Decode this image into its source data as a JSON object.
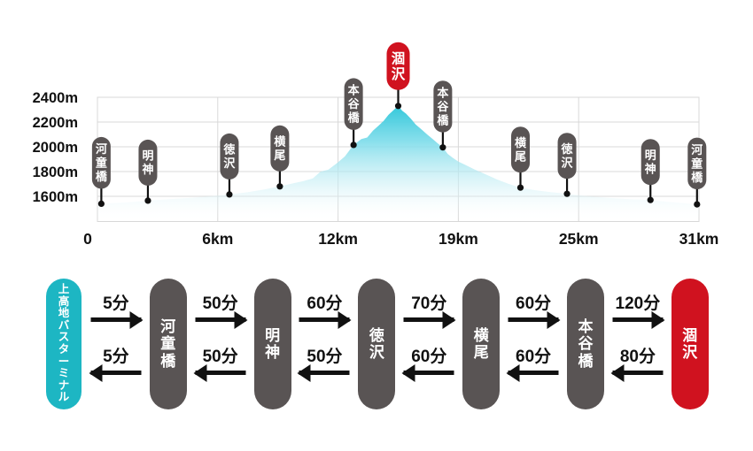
{
  "colors": {
    "teal": "#1db6c3",
    "red": "#d0121f",
    "dark_gray": "#595454",
    "grid_gray": "#d8d8d8",
    "text_black": "#111111",
    "area_cyan_top": "#1ec2d6",
    "area_cyan_mid": "#7ddcea",
    "area_cyan_low": "#c9eff5"
  },
  "chart_data": {
    "type": "area",
    "title": "",
    "xlabel": "",
    "ylabel": "",
    "x_ticks": [
      "0",
      "6km",
      "12km",
      "19km",
      "25km",
      "31km"
    ],
    "y_ticks": [
      "2400m",
      "2200m",
      "2000m",
      "1800m",
      "1600m"
    ],
    "y_tick_values": [
      2400,
      2200,
      2000,
      1800,
      1600
    ],
    "x_range_km": [
      0,
      31
    ],
    "y_range_m": [
      1400,
      2400
    ],
    "grid": true,
    "profile": {
      "x_km": [
        0,
        0.2,
        1.6,
        2.6,
        3.8,
        4.8,
        5.8,
        6.8,
        7.7,
        8.6,
        9.4,
        10.1,
        10.6,
        11.1,
        11.5,
        11.9,
        12.3,
        12.75,
        13.2,
        13.6,
        13.9,
        14.2,
        14.5,
        14.75,
        15.0,
        15.25,
        15.5,
        15.7,
        15.9,
        16.15,
        16.4,
        16.7,
        17.0,
        17.3,
        17.55,
        17.8,
        18.05,
        18.3,
        18.6,
        18.9,
        19.4,
        20.0,
        20.6,
        21.2,
        21.8,
        22.6,
        23.4,
        24.2,
        25.2,
        26.3,
        27.4,
        28.5,
        29.4,
        30.2,
        30.9,
        31
      ],
      "elevation_m": [
        1535,
        1540,
        1552,
        1565,
        1578,
        1588,
        1600,
        1615,
        1632,
        1656,
        1680,
        1706,
        1722,
        1745,
        1800,
        1815,
        1862,
        1922,
        2015,
        2062,
        2075,
        2130,
        2172,
        2210,
        2258,
        2295,
        2330,
        2292,
        2268,
        2228,
        2180,
        2140,
        2098,
        2060,
        2026,
        1995,
        1942,
        1912,
        1880,
        1858,
        1820,
        1778,
        1736,
        1700,
        1670,
        1648,
        1633,
        1620,
        1602,
        1588,
        1577,
        1570,
        1556,
        1545,
        1535,
        1533
      ]
    },
    "markers": [
      {
        "label": "河童橋",
        "km": 0.2,
        "elevation_m": 1540,
        "highlight": false
      },
      {
        "label": "明神",
        "km": 2.6,
        "elevation_m": 1565,
        "highlight": false
      },
      {
        "label": "徳沢",
        "km": 6.8,
        "elevation_m": 1615,
        "highlight": false
      },
      {
        "label": "横尾",
        "km": 9.4,
        "elevation_m": 1680,
        "highlight": false
      },
      {
        "label": "本谷橋",
        "km": 13.2,
        "elevation_m": 2015,
        "highlight": false
      },
      {
        "label": "涸沢",
        "km": 15.5,
        "elevation_m": 2330,
        "highlight": true
      },
      {
        "label": "本谷橋",
        "km": 17.8,
        "elevation_m": 1995,
        "highlight": false
      },
      {
        "label": "横尾",
        "km": 21.8,
        "elevation_m": 1670,
        "highlight": false
      },
      {
        "label": "徳沢",
        "km": 24.2,
        "elevation_m": 1620,
        "highlight": false
      },
      {
        "label": "明神",
        "km": 28.5,
        "elevation_m": 1570,
        "highlight": false
      },
      {
        "label": "河童橋",
        "km": 30.9,
        "elevation_m": 1535,
        "highlight": false
      }
    ]
  },
  "route_diagram": {
    "nodes": [
      {
        "label": "上高地バスターミナル",
        "type": "start"
      },
      {
        "label": "河童橋",
        "type": "mid"
      },
      {
        "label": "明神",
        "type": "mid"
      },
      {
        "label": "徳沢",
        "type": "mid"
      },
      {
        "label": "横尾",
        "type": "mid"
      },
      {
        "label": "本谷橋",
        "type": "mid"
      },
      {
        "label": "涸沢",
        "type": "goal"
      }
    ],
    "segments": [
      {
        "forward": "5分",
        "backward": "5分"
      },
      {
        "forward": "50分",
        "backward": "50分"
      },
      {
        "forward": "60分",
        "backward": "50分"
      },
      {
        "forward": "70分",
        "backward": "60分"
      },
      {
        "forward": "60分",
        "backward": "60分"
      },
      {
        "forward": "120分",
        "backward": "80分"
      }
    ]
  }
}
